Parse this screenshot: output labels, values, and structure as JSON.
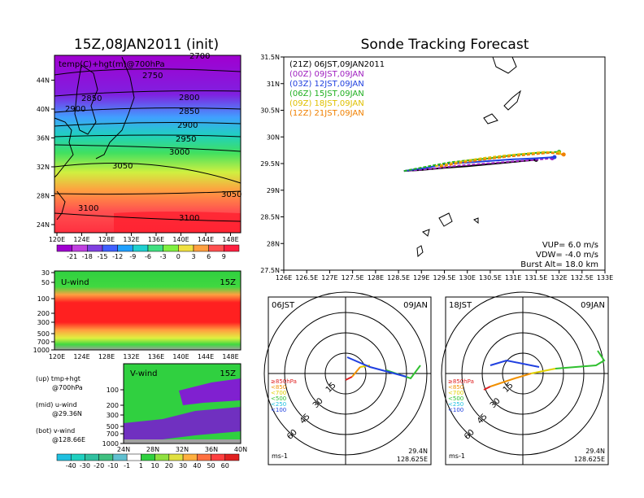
{
  "left_title": "15Z,08JAN2011 (init)",
  "right_title": "Sonde Tracking Forecast",
  "top_map": {
    "field_label": "temp(C)+hgt(m)@700hPa",
    "lon_ticks": [
      "120E",
      "124E",
      "128E",
      "132E",
      "136E",
      "140E",
      "144E",
      "148E"
    ],
    "lat_ticks": [
      "24N",
      "28N",
      "32N",
      "36N",
      "40N",
      "44N"
    ],
    "contour_labels": [
      "2700",
      "2750",
      "2800",
      "2850",
      "2850",
      "2900",
      "2900",
      "2950",
      "3000",
      "3050",
      "3050",
      "3100",
      "3100"
    ],
    "colorbar_labels": [
      "-21",
      "-18",
      "-15",
      "-12",
      "-9",
      "-6",
      "-3",
      "0",
      "3",
      "6",
      "9"
    ]
  },
  "uwind": {
    "label": "U-wind",
    "time": "15Z",
    "pressure_ticks": [
      "30",
      "50",
      "100",
      "200",
      "300",
      "500",
      "700",
      "1000"
    ],
    "lon_ticks": [
      "120E",
      "124E",
      "128E",
      "132E",
      "136E",
      "140E",
      "144E",
      "148E"
    ]
  },
  "vwind": {
    "label": "V-wind",
    "time": "15Z",
    "pressure_ticks": [
      "100",
      "200",
      "300",
      "500",
      "700",
      "1000"
    ],
    "lat_ticks": [
      "24N",
      "28N",
      "32N",
      "36N",
      "40N"
    ],
    "colorbar_labels": [
      "-40",
      "-30",
      "-20",
      "-10",
      "-1",
      "1",
      "10",
      "20",
      "30",
      "40",
      "50",
      "60"
    ]
  },
  "legend_notes": [
    {
      "line1": "(up) tmp+hgt",
      "line2": "@700hPa"
    },
    {
      "line1": "(mid) u-wind",
      "line2": "@29.36N"
    },
    {
      "line1": "(bot) v-wind",
      "line2": "@128.66E"
    }
  ],
  "track_map": {
    "lon_ticks": [
      "126E",
      "126.5E",
      "127E",
      "127.5E",
      "128E",
      "128.5E",
      "129E",
      "129.5E",
      "130E",
      "130.5E",
      "131E",
      "131.5E",
      "132E",
      "132.5E",
      "133E"
    ],
    "lat_ticks": [
      "27.5N",
      "28N",
      "28.5N",
      "29N",
      "29.5N",
      "30N",
      "30.5N",
      "31N",
      "31.5N"
    ],
    "launches": [
      {
        "label": "(21Z)  06JST,09JAN2011",
        "color": "#000000"
      },
      {
        "label": "(00Z)  09JST,09JAN",
        "color": "#a020c0"
      },
      {
        "label": "(03Z)  12JST,09JAN",
        "color": "#2040e0"
      },
      {
        "label": "(06Z)  15JST,09JAN",
        "color": "#20b020"
      },
      {
        "label": "(09Z)  18JST,09JAN",
        "color": "#e0c000"
      },
      {
        "label": "(12Z)  21JST,09JAN",
        "color": "#f08000"
      }
    ],
    "vup": "VUP=  6.0  m/s",
    "vdw": "VDW= -4.0  m/s",
    "burst": "Burst Alt=  18.0  km"
  },
  "hodographs": [
    {
      "time": "06JST",
      "date": "09JAN",
      "lat": "29.4N",
      "lon": "128.625E",
      "unit": "ms-1"
    },
    {
      "time": "18JST",
      "date": "09JAN",
      "lat": "29.4N",
      "lon": "128.625E",
      "unit": "ms-1"
    }
  ],
  "hodo_rings": [
    "15",
    "30",
    "45",
    "60"
  ],
  "hodo_levels": [
    {
      "label": "≥850hPa",
      "color": "#e02020"
    },
    {
      "label": "<850",
      "color": "#f09000"
    },
    {
      "label": "<700",
      "color": "#e0d000"
    },
    {
      "label": "<500",
      "color": "#30c030"
    },
    {
      "label": "<250",
      "color": "#20c0e0"
    },
    {
      "label": "<100",
      "color": "#2040e0"
    }
  ],
  "chart_data": [
    {
      "type": "heatmap",
      "title": "15Z,08JAN2011 (init)",
      "field": "temp(C)+hgt(m)@700hPa",
      "xlim": [
        120,
        150
      ],
      "ylim": [
        22,
        48
      ],
      "color_levels": [
        -21,
        -18,
        -15,
        -12,
        -9,
        -6,
        -3,
        0,
        3,
        6,
        9
      ],
      "height_contours": [
        2700,
        2750,
        2800,
        2850,
        2900,
        2950,
        3000,
        3050,
        3100
      ]
    },
    {
      "type": "heatmap",
      "title": "U-wind",
      "time": "15Z",
      "x_ticks": [
        "120E",
        "124E",
        "128E",
        "132E",
        "136E",
        "140E",
        "144E",
        "148E"
      ],
      "y_ticks_hPa": [
        30,
        50,
        100,
        200,
        300,
        500,
        700,
        1000
      ]
    },
    {
      "type": "heatmap",
      "title": "V-wind",
      "time": "15Z",
      "x_ticks": [
        "24N",
        "28N",
        "32N",
        "36N",
        "40N"
      ],
      "y_ticks_hPa": [
        100,
        200,
        300,
        500,
        700,
        1000
      ],
      "color_levels": [
        -40,
        -30,
        -20,
        -10,
        -1,
        1,
        10,
        20,
        30,
        40,
        50,
        60
      ]
    },
    {
      "type": "line",
      "title": "Sonde Tracking Forecast",
      "xlim": [
        126,
        133
      ],
      "ylim": [
        27.5,
        31.5
      ],
      "series": [
        {
          "name": "(21Z) 06JST,09JAN2011",
          "color": "#000000",
          "x": [
            128.62,
            129.0,
            129.5,
            130.0,
            130.5,
            131.0,
            131.5
          ],
          "y": [
            29.36,
            29.38,
            29.42,
            29.45,
            29.49,
            29.53,
            29.57
          ]
        },
        {
          "name": "(00Z) 09JST,09JAN",
          "color": "#a020c0",
          "x": [
            128.62,
            129.2,
            129.8,
            130.4,
            131.0,
            131.5,
            131.85
          ],
          "y": [
            29.36,
            29.4,
            29.46,
            29.5,
            29.54,
            29.57,
            29.6
          ]
        },
        {
          "name": "(03Z) 12JST,09JAN",
          "color": "#2040e0",
          "x": [
            128.62,
            129.1,
            129.6,
            130.0,
            130.5,
            131.0,
            131.5,
            131.9
          ],
          "y": [
            29.36,
            29.42,
            29.5,
            29.52,
            29.55,
            29.58,
            29.6,
            29.62
          ]
        },
        {
          "name": "(06Z) 15JST,09JAN",
          "color": "#20b020",
          "x": [
            128.62,
            129.1,
            129.6,
            130.0,
            130.5,
            131.0,
            131.5,
            132.0
          ],
          "y": [
            29.36,
            29.44,
            29.52,
            29.56,
            29.6,
            29.66,
            29.7,
            29.72
          ]
        },
        {
          "name": "(09Z) 18JST,09JAN",
          "color": "#e0c000",
          "x": [
            129.3,
            129.8,
            130.3,
            130.8,
            131.3,
            131.7,
            132.0
          ],
          "y": [
            29.45,
            29.53,
            29.6,
            29.65,
            29.69,
            29.72,
            29.7
          ]
        },
        {
          "name": "(12Z) 21JST,09JAN",
          "color": "#f08000",
          "x": [
            129.4,
            129.9,
            130.4,
            130.9,
            131.4,
            131.8,
            132.1
          ],
          "y": [
            29.44,
            29.52,
            29.58,
            29.63,
            29.67,
            29.7,
            29.67
          ]
        }
      ]
    }
  ]
}
